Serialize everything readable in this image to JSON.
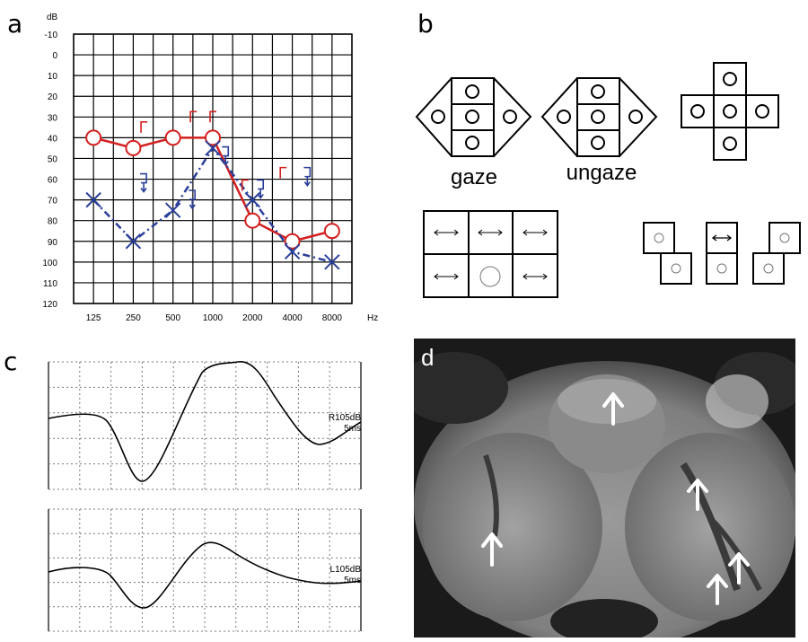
{
  "panel_labels": {
    "a": "a",
    "b": "b",
    "c": "c",
    "d": "d"
  },
  "audiogram": {
    "y_unit": "dB",
    "x_unit": "Hz",
    "y_ticks": [
      "-10",
      "0",
      "10",
      "20",
      "30",
      "40",
      "50",
      "60",
      "70",
      "80",
      "90",
      "100",
      "110",
      "120"
    ],
    "x_ticks": [
      "125",
      "250",
      "500",
      "1000",
      "2000",
      "4000",
      "8000"
    ]
  },
  "chart_data": {
    "type": "line",
    "categories": [
      "125",
      "250",
      "500",
      "1000",
      "2000",
      "4000",
      "8000"
    ],
    "ylim": [
      120,
      -10
    ],
    "y_unit": "dB",
    "x_unit": "Hz",
    "series": [
      {
        "marker": "circle",
        "color": "#d42020",
        "line": "solid",
        "values": [
          40,
          45,
          40,
          40,
          80,
          90,
          85
        ]
      },
      {
        "marker": "cross",
        "color": "#2a3f9a",
        "line": "dash-dot",
        "values": [
          70,
          90,
          75,
          45,
          70,
          95,
          100
        ]
      },
      {
        "marker": "right-bracket",
        "color": "#d42020",
        "points": [
          [
            300,
            35
          ],
          [
            710,
            30
          ],
          [
            1000,
            30
          ],
          [
            1750,
            63
          ],
          [
            3400,
            57
          ]
        ]
      },
      {
        "marker": "left-bracket-arrow",
        "color": "#2a3f9a",
        "points": [
          [
            300,
            60
          ],
          [
            700,
            68
          ],
          [
            1250,
            47
          ],
          [
            2300,
            63
          ],
          [
            5200,
            57
          ]
        ]
      }
    ]
  },
  "nystagmus": {
    "gaze_label": "gaze",
    "ungaze_label": "ungaze"
  },
  "abr": {
    "right": {
      "label": "R105dB",
      "time": "5ms"
    },
    "left": {
      "label": "L105dB",
      "time": "5ms"
    }
  },
  "colors": {
    "red": "#d42020",
    "blue": "#2a3f9a"
  }
}
